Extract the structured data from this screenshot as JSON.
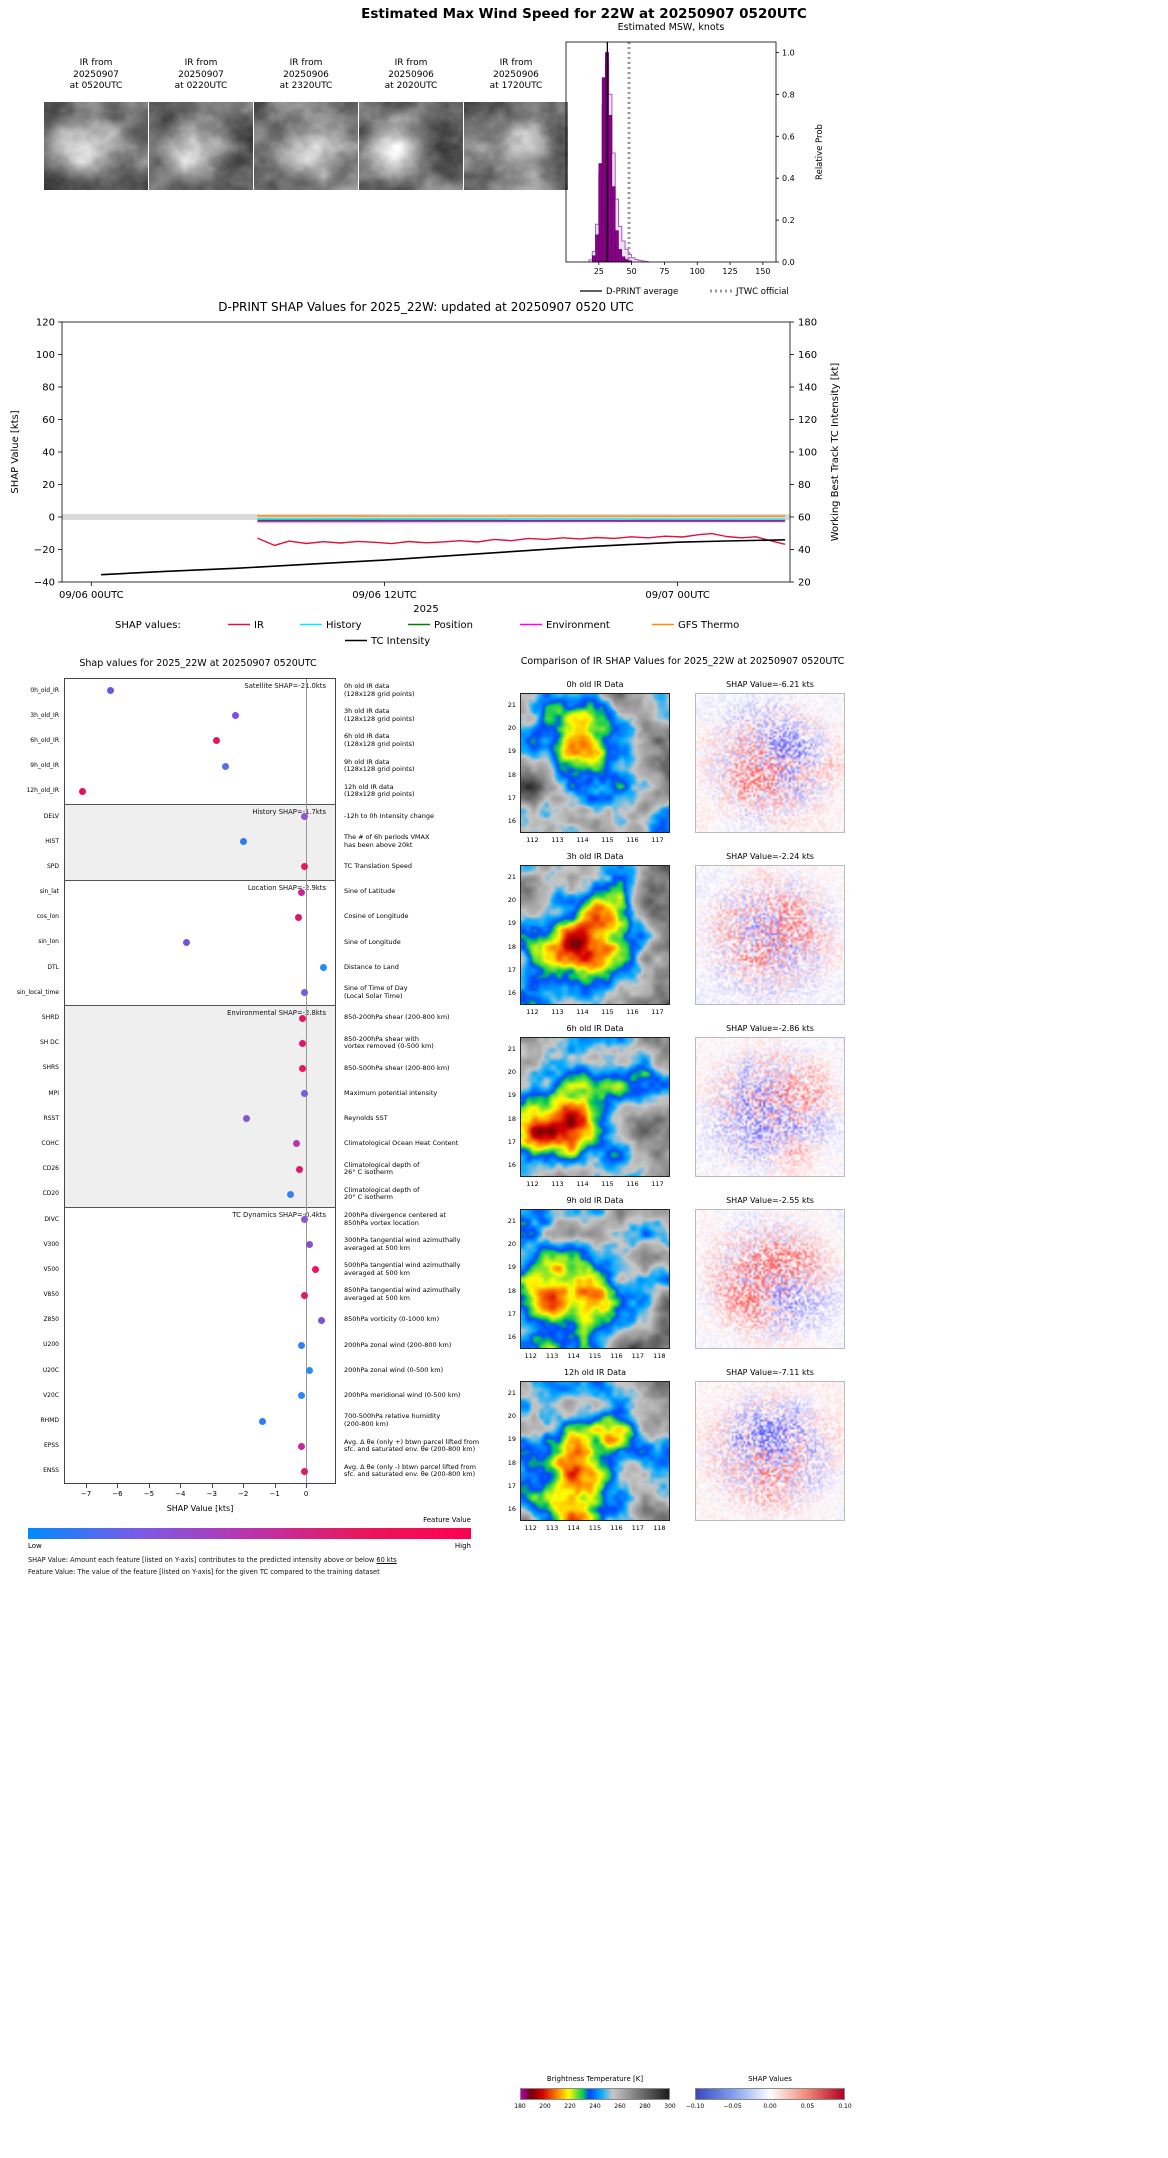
{
  "header": {
    "title": "Estimated Max Wind Speed for 22W at 20250907 0520UTC"
  },
  "ir_thumbnails": [
    {
      "lines": [
        "IR from",
        "20250907",
        "at 0520UTC"
      ]
    },
    {
      "lines": [
        "IR from",
        "20250907",
        "at 0220UTC"
      ]
    },
    {
      "lines": [
        "IR from",
        "20250906",
        "at 2320UTC"
      ]
    },
    {
      "lines": [
        "IR from",
        "20250906",
        "at 2020UTC"
      ]
    },
    {
      "lines": [
        "IR from",
        "20250906",
        "at 1720UTC"
      ]
    }
  ],
  "chart_data": [
    {
      "id": "msw_histogram",
      "type": "bar",
      "title": "Estimated MSW, knots",
      "ylabel": "Relative Prob",
      "xlim": [
        0,
        160
      ],
      "ylim": [
        0,
        1.05
      ],
      "xticks": [
        25,
        50,
        75,
        100,
        125,
        150
      ],
      "yticks": [
        "0.0",
        "0.2",
        "0.4",
        "0.6",
        "0.8",
        "1.0"
      ],
      "bin_width": 2.5,
      "filled": {
        "start": 20,
        "color": "#8b008b",
        "values": [
          0.03,
          0.13,
          0.47,
          0.88,
          1.0,
          0.7,
          0.36,
          0.15,
          0.06,
          0.025,
          0.012,
          0.006
        ]
      },
      "outline": {
        "start": 17.5,
        "color": "#a85ac0",
        "values": [
          0.01,
          0.05,
          0.18,
          0.42,
          0.75,
          0.95,
          0.8,
          0.52,
          0.3,
          0.17,
          0.1,
          0.06,
          0.035,
          0.02,
          0.012,
          0.008,
          0.005,
          0.003
        ]
      },
      "dprint_average": 31.5,
      "jtwc_official": 48,
      "legend": [
        {
          "label": "D-PRINT average",
          "style": "line",
          "color": "#000000"
        },
        {
          "label": "JTWC official",
          "style": "dotted",
          "color": "#999999"
        }
      ]
    },
    {
      "id": "shap_timeseries",
      "type": "line",
      "title": "D-PRINT SHAP Values for 2025_22W: updated at 20250907 0520 UTC",
      "ylabel_left": "SHAP Value [kts]",
      "ylabel_right": "Working Best Track TC Intensity [kt]",
      "year_label": "2025",
      "legend_prefix": "SHAP values:",
      "xticks": [
        {
          "hour": 0,
          "label": "09/06 00UTC"
        },
        {
          "hour": 12,
          "label": "09/06 12UTC"
        },
        {
          "hour": 24,
          "label": "09/07 00UTC"
        }
      ],
      "xlim_hours": [
        -1.2,
        28.6
      ],
      "ylim_left": [
        -40,
        120
      ],
      "yticks_left": [
        -40,
        -20,
        0,
        20,
        40,
        60,
        80,
        100,
        120
      ],
      "ylim_right": [
        20,
        180
      ],
      "yticks_right": [
        20,
        40,
        60,
        80,
        100,
        120,
        140,
        160,
        180
      ],
      "baseline_band": {
        "y": 0,
        "color": "#d9d9d9"
      },
      "series": [
        {
          "name": "IR",
          "color": "#dc143c",
          "axis": "left",
          "x": [
            6.8,
            7.5,
            8.1,
            8.8,
            9.5,
            10.2,
            10.9,
            11.6,
            12.3,
            13.0,
            13.7,
            14.4,
            15.1,
            15.8,
            16.5,
            17.2,
            17.9,
            18.6,
            19.3,
            20.0,
            20.7,
            21.4,
            22.1,
            22.8,
            23.5,
            24.2,
            24.9,
            25.4,
            26.0,
            26.6,
            27.2,
            27.8,
            28.4
          ],
          "y": [
            -13.0,
            -17.5,
            -14.8,
            -16.3,
            -15.2,
            -16.0,
            -15.0,
            -15.6,
            -16.4,
            -15.1,
            -15.9,
            -15.3,
            -14.6,
            -15.4,
            -13.8,
            -14.6,
            -13.2,
            -13.8,
            -12.8,
            -13.5,
            -12.6,
            -13.2,
            -12.2,
            -12.8,
            -11.8,
            -12.3,
            -10.8,
            -10.2,
            -12.0,
            -12.8,
            -12.2,
            -14.6,
            -16.8
          ]
        },
        {
          "name": "History",
          "color": "#00eaff",
          "axis": "left",
          "x": [
            6.8,
            28.4
          ],
          "y": [
            -1.1,
            -1.3
          ]
        },
        {
          "name": "Position",
          "color": "#008000",
          "axis": "left",
          "x": [
            6.8,
            28.4
          ],
          "y": [
            -2.1,
            -2.3
          ]
        },
        {
          "name": "Environment",
          "color": "#ff00ff",
          "axis": "left",
          "x": [
            6.8,
            28.4
          ],
          "y": [
            -2.9,
            -2.7
          ]
        },
        {
          "name": "GFS Thermo",
          "color": "#ff8c00",
          "axis": "left",
          "x": [
            6.8,
            28.4
          ],
          "y": [
            0.6,
            0.5
          ]
        },
        {
          "name": "TC Intensity",
          "color": "#000000",
          "axis": "right",
          "x": [
            0.4,
            3,
            6,
            9,
            12,
            15,
            18,
            20,
            22,
            24,
            26,
            28.4
          ],
          "y": [
            24.5,
            26.5,
            28.5,
            31,
            33.5,
            36.5,
            39.5,
            41.5,
            43,
            44.5,
            45.2,
            46
          ]
        }
      ]
    },
    {
      "id": "shap_features",
      "type": "scatter",
      "title": "Shap values for 2025_22W at 20250907 0520UTC",
      "xlabel": "SHAP Value [kts]",
      "xlim": [
        -7.7,
        0.95
      ],
      "xticks": [
        -7,
        -6,
        -5,
        -4,
        -3,
        -2,
        -1,
        0
      ],
      "colorbar": {
        "label": "Feature Value",
        "low": "Low",
        "high": "High",
        "colors": [
          "#008bfb",
          "#7a5be5",
          "#b934ad",
          "#e8175d",
          "#ff0051"
        ]
      },
      "footnote_shap_pre": "SHAP Value: Amount each feature [listed on Y-axis] contributes to the predicted intensity above or below ",
      "footnote_shap_underline": "60 kts",
      "footnote_feature": "Feature Value: The value of the feature [listed on Y-axis] for the given TC compared to the training dataset",
      "groups": [
        {
          "label": "Satellite SHAP=-21.0kts",
          "shaded": false,
          "features": [
            {
              "name": "0h_old_IR",
              "value": -6.21,
              "color": "#6458e8",
              "desc": "0h old IR data\n(128x128 grid points)"
            },
            {
              "name": "3h_old_IR",
              "value": -2.24,
              "color": "#7b50df",
              "desc": "3h old IR data\n(128x128 grid points)"
            },
            {
              "name": "6h_old_IR",
              "value": -2.86,
              "color": "#e8175d",
              "desc": "6h old IR data\n(128x128 grid points)"
            },
            {
              "name": "9h_old_IR",
              "value": -2.55,
              "color": "#5a6cf0",
              "desc": "9h old IR data\n(128x128 grid points)"
            },
            {
              "name": "12h_old_IR",
              "value": -7.11,
              "color": "#e0115f",
              "desc": "12h old IR data\n(128x128 grid points)"
            }
          ]
        },
        {
          "label": "History SHAP=-1.7kts",
          "shaded": true,
          "features": [
            {
              "name": "DELV",
              "value": -0.05,
              "color": "#8a55d6",
              "desc": "-12h to 0h Intensity change"
            },
            {
              "name": "HIST",
              "value": -2.0,
              "color": "#2e7ef0",
              "desc": "The # of 6h periods VMAX\nhas been above 20kt"
            },
            {
              "name": "SPD",
              "value": -0.05,
              "color": "#e8175d",
              "desc": "TC Translation Speed"
            }
          ]
        },
        {
          "label": "Location SHAP=-2.9kts",
          "shaded": false,
          "features": [
            {
              "name": "sin_lat",
              "value": -0.15,
              "color": "#c42994",
              "desc": "Sine of Latitude"
            },
            {
              "name": "cos_lon",
              "value": -0.25,
              "color": "#d6186e",
              "desc": "Cosine of Longitude"
            },
            {
              "name": "sin_lon",
              "value": -3.8,
              "color": "#6a5ae0",
              "desc": "Sine of Longitude"
            },
            {
              "name": "DTL",
              "value": 0.55,
              "color": "#1f8ffb",
              "desc": "Distance to Land"
            },
            {
              "name": "sin_local_time",
              "value": -0.05,
              "color": "#7a5be5",
              "desc": "Sine of Time of Day\n(Local Solar Time)"
            }
          ]
        },
        {
          "label": "Environmental SHAP=-2.8kts",
          "shaded": true,
          "features": [
            {
              "name": "SHRD",
              "value": -0.1,
              "color": "#e8175d",
              "desc": "850-200hPa shear (200-800 km)"
            },
            {
              "name": "SH DC",
              "value": -0.1,
              "color": "#e0186a",
              "desc": "850-200hPa shear with\nvortex removed (0-500 km)"
            },
            {
              "name": "SHRS",
              "value": -0.1,
              "color": "#e8175d",
              "desc": "850-500hPa shear (200-800 km)"
            },
            {
              "name": "MPI",
              "value": -0.05,
              "color": "#7a5be5",
              "desc": "Maximum potential intensity"
            },
            {
              "name": "RSST",
              "value": -1.9,
              "color": "#8456dd",
              "desc": "Reynolds SST"
            },
            {
              "name": "COHC",
              "value": -0.3,
              "color": "#b934ad",
              "desc": "Climatological Ocean Heat Content"
            },
            {
              "name": "CD26",
              "value": -0.2,
              "color": "#e0186a",
              "desc": "Climatological depth of\n26° C isotherm"
            },
            {
              "name": "CD20",
              "value": -0.5,
              "color": "#2f83f2",
              "desc": "Climatological depth of\n20° C isotherm"
            }
          ]
        },
        {
          "label": "TC Dynamics SHAP=-0.4kts",
          "shaded": false,
          "features": [
            {
              "name": "DIVC",
              "value": -0.05,
              "color": "#8a55d6",
              "desc": "200hPa divergence centered at\n850hPa vortex location"
            },
            {
              "name": "V300",
              "value": 0.1,
              "color": "#8a4fd0",
              "desc": "300hPa tangential wind azimuthally\naveraged at 500 km"
            },
            {
              "name": "V500",
              "value": 0.3,
              "color": "#ee1166",
              "desc": "500hPa tangential wind azimuthally\naveraged at 500 km"
            },
            {
              "name": "V850",
              "value": -0.05,
              "color": "#e0186a",
              "desc": "850hPa tangential wind azimuthally\naveraged at 500 km"
            },
            {
              "name": "Z850",
              "value": 0.5,
              "color": "#7a52d6",
              "desc": "850hPa vorticity (0-1000 km)"
            },
            {
              "name": "U200",
              "value": -0.15,
              "color": "#2f83f2",
              "desc": "200hPa zonal wind (200-800 km)"
            },
            {
              "name": "U20C",
              "value": 0.1,
              "color": "#2a8af6",
              "desc": "200hPa zonal wind (0-500 km)"
            },
            {
              "name": "V20C",
              "value": -0.15,
              "color": "#2a8af6",
              "desc": "200hPa meridional wind (0-500 km)"
            },
            {
              "name": "RHMD",
              "value": -1.4,
              "color": "#2e7ef0",
              "desc": "700-500hPa relative humidity\n(200-800 km)"
            },
            {
              "name": "EPSS",
              "value": -0.15,
              "color": "#c42994",
              "desc": "Avg. Δ θe (only +) btwn parcel lifted from\nsfc. and saturated env. θe (200-800 km)"
            },
            {
              "name": "ENSS",
              "value": -0.05,
              "color": "#e0186a",
              "desc": "Avg. Δ θe (only -) btwn parcel lifted from\nsfc. and saturated env. θe (200-800 km)"
            }
          ]
        }
      ]
    },
    {
      "id": "ir_comparison",
      "type": "heatmap",
      "title": "Comparison of IR SHAP Values for 2025_22W at 20250907 0520UTC",
      "rows": [
        {
          "ir_title": "0h old IR Data",
          "shap_title": "SHAP Value=-6.21 kts",
          "lat_ticks": [
            21,
            20,
            19,
            18,
            17,
            16
          ],
          "lon_ticks": [
            112,
            113,
            114,
            115,
            116,
            117
          ]
        },
        {
          "ir_title": "3h old IR Data",
          "shap_title": "SHAP Value=-2.24 kts",
          "lat_ticks": [
            21,
            20,
            19,
            18,
            17,
            16
          ],
          "lon_ticks": [
            112,
            113,
            114,
            115,
            116,
            117
          ]
        },
        {
          "ir_title": "6h old IR Data",
          "shap_title": "SHAP Value=-2.86 kts",
          "lat_ticks": [
            21,
            20,
            19,
            18,
            17,
            16
          ],
          "lon_ticks": [
            112,
            113,
            114,
            115,
            116,
            117
          ]
        },
        {
          "ir_title": "9h old IR Data",
          "shap_title": "SHAP Value=-2.55 kts",
          "lat_ticks": [
            21,
            20,
            19,
            18,
            17,
            16
          ],
          "lon_ticks": [
            112,
            113,
            114,
            115,
            116,
            117,
            118
          ]
        },
        {
          "ir_title": "12h old IR Data",
          "shap_title": "SHAP Value=-7.11 kts",
          "lat_ticks": [
            21,
            20,
            19,
            18,
            17,
            16
          ],
          "lon_ticks": [
            112,
            113,
            114,
            115,
            116,
            117,
            118
          ]
        }
      ],
      "colorbars": [
        {
          "label": "Brightness Temperature [K]",
          "ticks": [
            "180",
            "200",
            "220",
            "240",
            "260",
            "280",
            "300"
          ],
          "kind": "ir"
        },
        {
          "label": "SHAP Values",
          "ticks": [
            "-0.10",
            "-0.05",
            "0.00",
            "0.05",
            "0.10"
          ],
          "kind": "bwr"
        }
      ]
    }
  ]
}
